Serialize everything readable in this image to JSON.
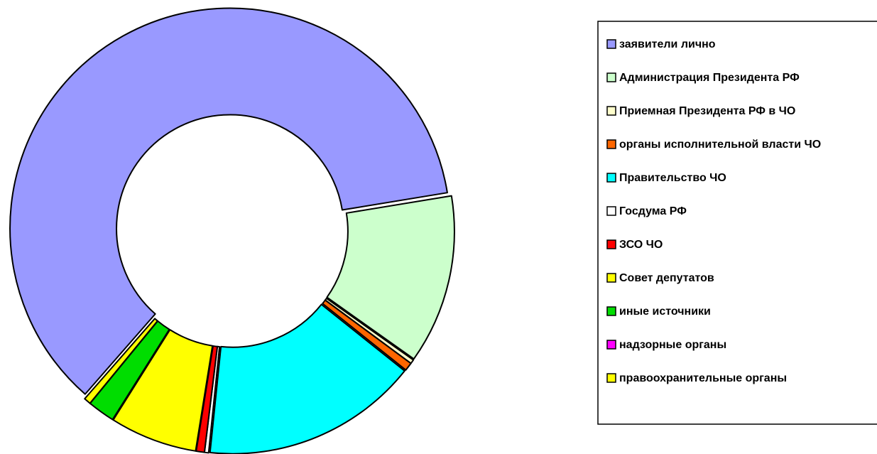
{
  "chart_data": {
    "type": "pie",
    "donut": true,
    "categories": [
      "заявители лично",
      "Администрация Президента РФ",
      "Приемная Президента РФ в ЧО",
      "органы исполнительной власти ЧО",
      "Правительство ЧО",
      "Госдума РФ",
      "ЗСО ЧО",
      "Совет депутатов",
      "иные источники",
      "надзорные органы",
      "правоохранительные органы"
    ],
    "values": [
      60.9,
      12.4,
      0.3,
      0.6,
      15.9,
      0.3,
      0.6,
      6.4,
      2.0,
      0,
      0.5
    ],
    "colors": [
      "#9999ff",
      "#ccffcc",
      "#ffffcc",
      "#ff6600",
      "#00ffff",
      "#ffffff",
      "#ff0000",
      "#ffff00",
      "#00dd00",
      "#ff00ff",
      "#ffff00"
    ],
    "legend": "right"
  }
}
